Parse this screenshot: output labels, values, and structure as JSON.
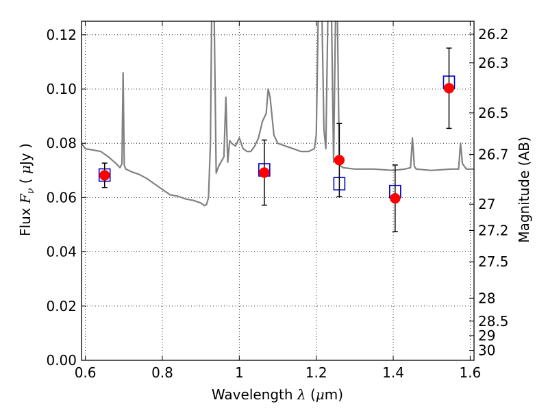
{
  "chart_data": {
    "type": "scatter",
    "xlabel": {
      "prefix": "Wavelength  ",
      "symbol": "λ",
      "mid": " (",
      "unit_symbol": "μ",
      "suffix": "m)"
    },
    "ylabel": {
      "prefix": "Flux  ",
      "symbol": "F",
      "sub": "ν",
      "mid": "  ( ",
      "unit_symbol": "μ",
      "suffix": "Jy )"
    },
    "y2label": "Magnitude (AB)",
    "xlim": [
      0.59,
      1.61
    ],
    "ylim": [
      0.0,
      0.125
    ],
    "grid": true,
    "xticks": [
      0.6,
      0.8,
      1.0,
      1.2,
      1.4,
      1.6
    ],
    "xtick_labels": [
      "0.6",
      "0.8",
      "1",
      "1.2",
      "1.4",
      "1.6"
    ],
    "yticks": [
      0.0,
      0.02,
      0.04,
      0.06,
      0.08,
      0.1,
      0.12
    ],
    "ytick_labels": [
      "0.00",
      "0.02",
      "0.04",
      "0.06",
      "0.08",
      "0.10",
      "0.12"
    ],
    "y2_ticks": [
      {
        "label": "26.2",
        "mag": 26.2
      },
      {
        "label": "26.3",
        "mag": 26.3
      },
      {
        "label": "26.5",
        "mag": 26.5
      },
      {
        "label": "26.7",
        "mag": 26.7
      },
      {
        "label": "27",
        "mag": 27.0
      },
      {
        "label": "27.2",
        "mag": 27.2
      },
      {
        "label": "27.5",
        "mag": 27.5
      },
      {
        "label": "28",
        "mag": 28.0
      },
      {
        "label": "28.5",
        "mag": 28.5
      },
      {
        "label": "29",
        "mag": 29.0
      },
      {
        "label": "30",
        "mag": 30.0
      }
    ],
    "colors": {
      "spectrum": "#808080",
      "observed": "#ff0000",
      "model": "#0000cc",
      "errorbar": "#000000",
      "grid": "#000000"
    },
    "series": [
      {
        "kind": "spectrum",
        "x": [
          0.59,
          0.6,
          0.62,
          0.64,
          0.66,
          0.68,
          0.69,
          0.695,
          0.698,
          0.701,
          0.705,
          0.72,
          0.74,
          0.76,
          0.78,
          0.8,
          0.82,
          0.84,
          0.86,
          0.88,
          0.9,
          0.91,
          0.915,
          0.92,
          0.925,
          0.928,
          0.93,
          0.935,
          0.94,
          0.945,
          0.95,
          0.96,
          0.965,
          0.97,
          0.975,
          0.98,
          0.99,
          1.0,
          1.01,
          1.02,
          1.03,
          1.04,
          1.05,
          1.06,
          1.07,
          1.075,
          1.08,
          1.09,
          1.1,
          1.12,
          1.14,
          1.16,
          1.18,
          1.195,
          1.2,
          1.205,
          1.21,
          1.215,
          1.22,
          1.225,
          1.23,
          1.235,
          1.24,
          1.245,
          1.25,
          1.255,
          1.26,
          1.265,
          1.27,
          1.3,
          1.35,
          1.4,
          1.43,
          1.445,
          1.45,
          1.455,
          1.46,
          1.5,
          1.55,
          1.57,
          1.575,
          1.58,
          1.59,
          1.61
        ],
        "y": [
          0.08,
          0.078,
          0.0775,
          0.077,
          0.075,
          0.0725,
          0.071,
          0.0725,
          0.106,
          0.072,
          0.0705,
          0.0695,
          0.0685,
          0.067,
          0.065,
          0.063,
          0.061,
          0.0605,
          0.0595,
          0.059,
          0.058,
          0.057,
          0.0575,
          0.06,
          0.08,
          0.125,
          0.126,
          0.125,
          0.069,
          0.071,
          0.0725,
          0.075,
          0.097,
          0.073,
          0.081,
          0.08,
          0.079,
          0.082,
          0.078,
          0.077,
          0.077,
          0.079,
          0.082,
          0.088,
          0.091,
          0.1,
          0.097,
          0.083,
          0.08,
          0.079,
          0.078,
          0.077,
          0.077,
          0.078,
          0.083,
          0.126,
          0.126,
          0.126,
          0.085,
          0.078,
          0.125,
          0.126,
          0.125,
          0.073,
          0.126,
          0.126,
          0.072,
          0.0715,
          0.071,
          0.0705,
          0.0705,
          0.07,
          0.0705,
          0.071,
          0.082,
          0.0715,
          0.0705,
          0.07,
          0.0705,
          0.0705,
          0.08,
          0.0725,
          0.0705,
          0.0705
        ]
      },
      {
        "kind": "model_photometry",
        "marker": "square",
        "x": [
          0.65,
          1.065,
          1.26,
          1.405,
          1.545
        ],
        "y": [
          0.0683,
          0.0702,
          0.0651,
          0.0622,
          0.1025
        ]
      },
      {
        "kind": "observed_photometry",
        "marker": "circle",
        "x": [
          0.65,
          1.065,
          1.26,
          1.405,
          1.545
        ],
        "y": [
          0.0682,
          0.0692,
          0.0738,
          0.0597,
          0.1003
        ],
        "err": [
          0.0045,
          0.012,
          0.0135,
          0.0123,
          0.0148
        ]
      }
    ]
  }
}
